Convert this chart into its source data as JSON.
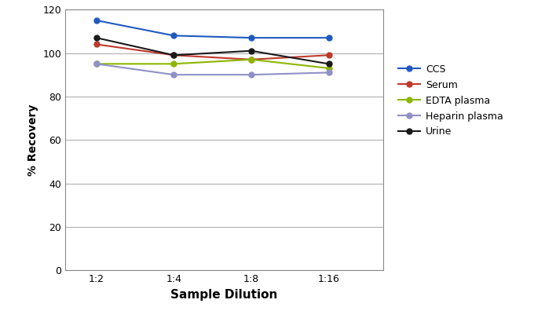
{
  "x_labels": [
    "1:2",
    "1:4",
    "1:8",
    "1:16"
  ],
  "x_positions": [
    1,
    2,
    3,
    4
  ],
  "series": [
    {
      "label": "CCS",
      "color": "#1f5abf",
      "values": [
        115,
        108,
        107,
        107
      ]
    },
    {
      "label": "Serum",
      "color": "#c0392b",
      "values": [
        104,
        99,
        97,
        99
      ]
    },
    {
      "label": "EDTA plasma",
      "color": "#8db600",
      "values": [
        95,
        95,
        97,
        93
      ]
    },
    {
      "label": "Heparin plasma",
      "color": "#9090c8",
      "values": [
        95,
        90,
        90,
        91
      ]
    },
    {
      "label": "Urine",
      "color": "#1a1a1a",
      "values": [
        107,
        99,
        101,
        95
      ]
    }
  ],
  "ylabel": "% Recovery",
  "xlabel": "Sample Dilution",
  "ylim": [
    0,
    120
  ],
  "yticks": [
    0,
    20,
    40,
    60,
    80,
    100,
    120
  ],
  "grid_color": "#b0b0b0",
  "marker": "o",
  "marker_size": 5,
  "line_width": 1.5,
  "figure_width": 6.94,
  "figure_height": 4.05,
  "dpi": 100,
  "xlabel_fontsize": 11,
  "ylabel_fontsize": 10,
  "tick_fontsize": 9,
  "legend_fontsize": 9,
  "xlim": [
    0.6,
    4.7
  ]
}
